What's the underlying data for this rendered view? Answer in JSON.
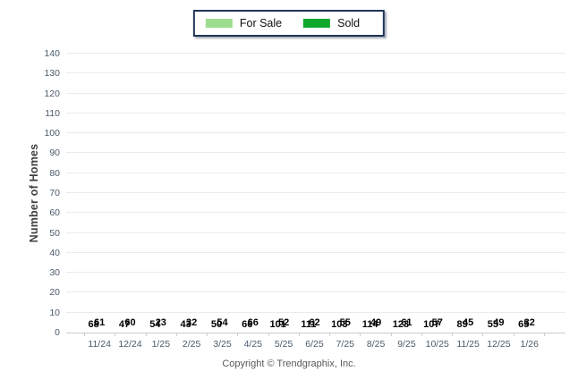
{
  "chart_data": {
    "type": "bar",
    "title": "",
    "categories": [
      "11/24",
      "12/24",
      "1/25",
      "2/25",
      "3/25",
      "4/25",
      "5/25",
      "6/25",
      "7/25",
      "8/25",
      "9/25",
      "10/25",
      "11/25",
      "12/25",
      "1/26"
    ],
    "series": [
      {
        "name": "For Sale",
        "color": "#9EDD8F",
        "values": [
          68,
          47,
          54,
          43,
          50,
          66,
          101,
          111,
          103,
          114,
          123,
          107,
          89,
          55,
          65
        ],
        "label_position": "above-bar"
      },
      {
        "name": "Sold",
        "color": "#0FA82D",
        "values": [
          61,
          60,
          23,
          32,
          54,
          66,
          52,
          62,
          55,
          49,
          61,
          57,
          45,
          49,
          32
        ],
        "label_position": "bottom-of-plot"
      }
    ],
    "xlabel": "",
    "ylabel": "Number of Homes",
    "ylim": [
      0,
      140
    ],
    "ytick_step": 10,
    "grid": true,
    "legend_position": "top-center"
  },
  "footer": {
    "copyright": "Copyright © Trendgraphix, Inc."
  },
  "colors": {
    "gridline": "#EBEBEB",
    "baseline": "#C9CCCE",
    "axis_text": "#4A5A6B",
    "value_label": "#000000",
    "legend_border": "#1F3557",
    "background": "#FFFFFF"
  }
}
